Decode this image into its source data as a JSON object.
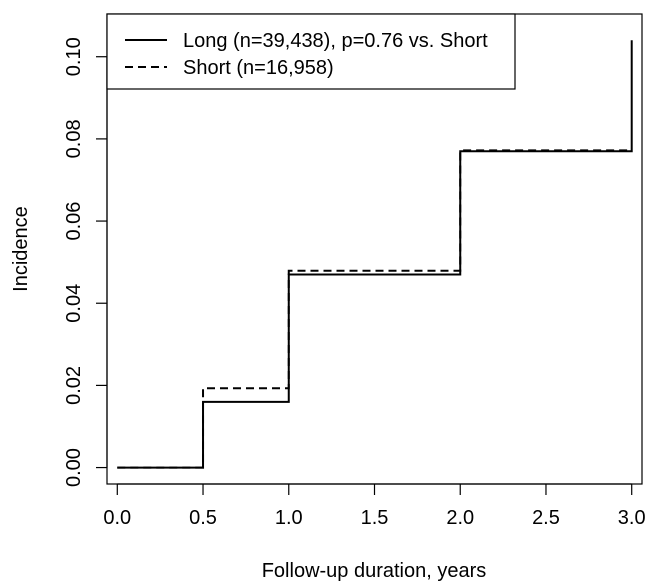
{
  "chart_data": {
    "type": "line",
    "step": true,
    "title": "",
    "xlabel": "Follow-up duration, years",
    "ylabel": "Incidence",
    "xlim": [
      -0.06,
      3.06
    ],
    "ylim": [
      -0.004,
      0.1104
    ],
    "xticks": [
      0.0,
      0.5,
      1.0,
      1.5,
      2.0,
      2.5,
      3.0
    ],
    "xtick_labels": [
      "0.0",
      "0.5",
      "1.0",
      "1.5",
      "2.0",
      "2.5",
      "3.0"
    ],
    "yticks": [
      0.0,
      0.02,
      0.04,
      0.06,
      0.08,
      0.1
    ],
    "ytick_labels": [
      "0.00",
      "0.02",
      "0.04",
      "0.06",
      "0.08",
      "0.10"
    ],
    "grid": false,
    "legend_position": "top-left",
    "series": [
      {
        "name": "Long (n=39,438), p=0.76 vs. Short",
        "line_style": "solid",
        "x": [
          0.0,
          0.5,
          1.0,
          2.0,
          3.0
        ],
        "y": [
          0.0,
          0.016,
          0.047,
          0.077,
          0.104
        ]
      },
      {
        "name": "Short (n=16,958)",
        "line_style": "dashed",
        "x": [
          0.0,
          0.5,
          1.0,
          2.0,
          3.0
        ],
        "y": [
          0.0,
          0.0193,
          0.0479,
          0.0772,
          0.0772
        ]
      }
    ]
  }
}
